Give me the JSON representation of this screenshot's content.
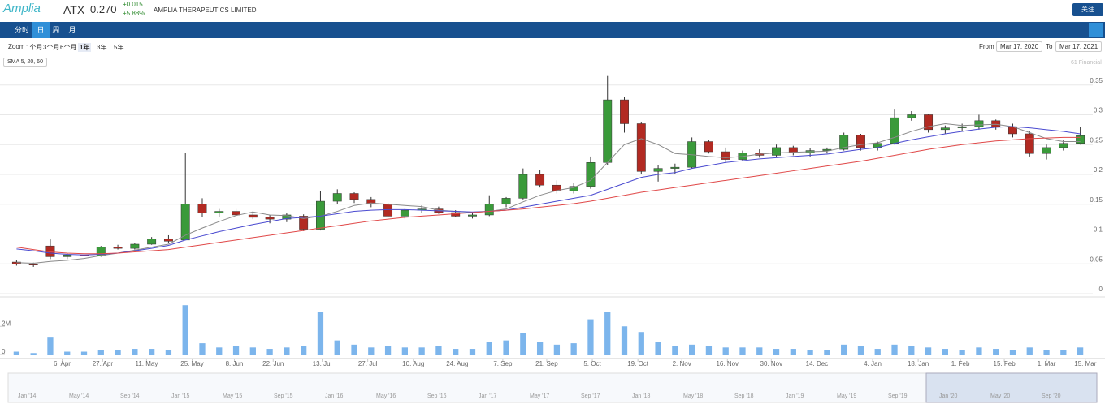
{
  "header": {
    "logo": "Amplia",
    "ticker": "ATX",
    "price": "0.270",
    "change": "+0.015",
    "change_pct": "+5.88%",
    "company": "AMPLIA THERAPEUTICS LIMITED",
    "follow": "关注"
  },
  "tabs": [
    "分时",
    "日",
    "周",
    "月"
  ],
  "zoom": {
    "label": "Zoom",
    "options": [
      "1个月",
      "3个月",
      "6个月",
      "1年",
      "3年",
      "5年"
    ],
    "from_label": "From",
    "from": "Mar 17, 2020",
    "to_label": "To",
    "to": "Mar 17, 2021"
  },
  "indicator": "SMA 5, 20, 60",
  "credit": "61 Financial",
  "navigator": [
    "Jan '14",
    "May '14",
    "Sep '14",
    "Jan '15",
    "May '15",
    "Sep '15",
    "Jan '16",
    "May '16",
    "Sep '16",
    "Jan '17",
    "May '17",
    "Sep '17",
    "Jan '18",
    "May '18",
    "Sep '18",
    "Jan '19",
    "May '19",
    "Sep '19",
    "Jan '20",
    "May '20",
    "Sep '20"
  ],
  "chart_data": [
    {
      "type": "candlestick",
      "up_color": "#3a9a3a",
      "down_color": "#b22a22",
      "categories": [
        null,
        null,
        null,
        null,
        null,
        null,
        null,
        null,
        null,
        null,
        null,
        null,
        null,
        null,
        null,
        null,
        null,
        null,
        null,
        null,
        null,
        null,
        null,
        null,
        null,
        null,
        null,
        null,
        null,
        null,
        null,
        null,
        null,
        null,
        null,
        null,
        null,
        null,
        null,
        null,
        null,
        null,
        null,
        null,
        null,
        null,
        null,
        null,
        null,
        null,
        null,
        null,
        null,
        null,
        null,
        null,
        null,
        null,
        null,
        null,
        null,
        null,
        null,
        null
      ],
      "open": [
        0.053,
        0.05,
        0.08,
        0.062,
        0.065,
        0.063,
        0.078,
        0.076,
        0.083,
        0.092,
        0.09,
        0.15,
        0.135,
        0.138,
        0.132,
        0.128,
        0.125,
        0.13,
        0.108,
        0.155,
        0.168,
        0.158,
        0.15,
        0.13,
        0.14,
        0.142,
        0.136,
        0.13,
        0.132,
        0.15,
        0.16,
        0.2,
        0.182,
        0.172,
        0.18,
        0.22,
        0.325,
        0.285,
        0.205,
        0.21,
        0.212,
        0.255,
        0.238,
        0.225,
        0.236,
        0.232,
        0.245,
        0.236,
        0.24,
        0.242,
        0.266,
        0.245,
        0.252,
        0.295,
        0.3,
        0.275,
        0.278,
        0.28,
        0.29,
        0.28,
        0.268,
        0.235,
        0.245,
        0.252
      ],
      "high": [
        0.056,
        0.052,
        0.091,
        0.068,
        0.068,
        0.08,
        0.082,
        0.085,
        0.095,
        0.098,
        0.236,
        0.16,
        0.142,
        0.142,
        0.138,
        0.132,
        0.135,
        0.133,
        0.172,
        0.175,
        0.17,
        0.162,
        0.152,
        0.142,
        0.148,
        0.146,
        0.14,
        0.135,
        0.165,
        0.162,
        0.21,
        0.208,
        0.19,
        0.185,
        0.23,
        0.365,
        0.33,
        0.288,
        0.215,
        0.218,
        0.262,
        0.258,
        0.245,
        0.24,
        0.242,
        0.25,
        0.248,
        0.244,
        0.245,
        0.27,
        0.268,
        0.255,
        0.31,
        0.306,
        0.302,
        0.282,
        0.285,
        0.3,
        0.292,
        0.285,
        0.272,
        0.25,
        0.258,
        0.28
      ],
      "low": [
        0.047,
        0.045,
        0.058,
        0.058,
        0.06,
        0.062,
        0.074,
        0.074,
        0.082,
        0.085,
        0.09,
        0.128,
        0.128,
        0.13,
        0.125,
        0.118,
        0.12,
        0.105,
        0.106,
        0.15,
        0.152,
        0.145,
        0.128,
        0.126,
        0.136,
        0.134,
        0.128,
        0.126,
        0.13,
        0.145,
        0.158,
        0.178,
        0.168,
        0.168,
        0.176,
        0.215,
        0.27,
        0.2,
        0.188,
        0.2,
        0.21,
        0.235,
        0.22,
        0.222,
        0.228,
        0.23,
        0.232,
        0.23,
        0.235,
        0.24,
        0.24,
        0.24,
        0.25,
        0.29,
        0.27,
        0.268,
        0.272,
        0.275,
        0.275,
        0.262,
        0.23,
        0.225,
        0.24,
        0.25
      ],
      "close": [
        0.05,
        0.048,
        0.062,
        0.065,
        0.063,
        0.078,
        0.076,
        0.083,
        0.092,
        0.088,
        0.15,
        0.135,
        0.138,
        0.132,
        0.128,
        0.125,
        0.132,
        0.108,
        0.155,
        0.168,
        0.158,
        0.15,
        0.13,
        0.14,
        0.142,
        0.136,
        0.13,
        0.132,
        0.15,
        0.16,
        0.2,
        0.182,
        0.172,
        0.18,
        0.22,
        0.325,
        0.285,
        0.205,
        0.21,
        0.212,
        0.255,
        0.238,
        0.225,
        0.236,
        0.232,
        0.245,
        0.236,
        0.24,
        0.242,
        0.266,
        0.245,
        0.252,
        0.295,
        0.3,
        0.275,
        0.278,
        0.28,
        0.29,
        0.28,
        0.268,
        0.235,
        0.245,
        0.252,
        0.265
      ],
      "series": [
        {
          "name": "SMA 5",
          "color": "#8a8a8a",
          "values": [
            0.052,
            0.051,
            0.054,
            0.056,
            0.059,
            0.064,
            0.068,
            0.073,
            0.078,
            0.083,
            0.098,
            0.11,
            0.121,
            0.131,
            0.137,
            0.132,
            0.131,
            0.126,
            0.13,
            0.138,
            0.148,
            0.152,
            0.15,
            0.148,
            0.146,
            0.14,
            0.138,
            0.136,
            0.138,
            0.142,
            0.154,
            0.165,
            0.173,
            0.178,
            0.19,
            0.22,
            0.25,
            0.26,
            0.25,
            0.235,
            0.233,
            0.23,
            0.228,
            0.23,
            0.234,
            0.236,
            0.237,
            0.238,
            0.239,
            0.245,
            0.25,
            0.253,
            0.262,
            0.272,
            0.28,
            0.285,
            0.282,
            0.283,
            0.284,
            0.28,
            0.27,
            0.26,
            0.255,
            0.255
          ]
        },
        {
          "name": "SMA 20",
          "color": "#4a4ad0",
          "values": [
            0.075,
            0.072,
            0.068,
            0.066,
            0.065,
            0.066,
            0.068,
            0.072,
            0.076,
            0.081,
            0.09,
            0.097,
            0.104,
            0.11,
            0.116,
            0.121,
            0.126,
            0.128,
            0.13,
            0.134,
            0.138,
            0.14,
            0.141,
            0.141,
            0.14,
            0.139,
            0.138,
            0.137,
            0.138,
            0.14,
            0.145,
            0.15,
            0.155,
            0.16,
            0.165,
            0.175,
            0.185,
            0.195,
            0.2,
            0.203,
            0.21,
            0.215,
            0.22,
            0.223,
            0.226,
            0.228,
            0.23,
            0.232,
            0.234,
            0.238,
            0.242,
            0.245,
            0.252,
            0.258,
            0.263,
            0.268,
            0.272,
            0.276,
            0.279,
            0.28,
            0.278,
            0.275,
            0.272,
            0.268
          ]
        },
        {
          "name": "SMA 60",
          "color": "#e04848",
          "values": [
            0.078,
            0.074,
            0.07,
            0.068,
            0.067,
            0.067,
            0.068,
            0.07,
            0.072,
            0.074,
            0.078,
            0.082,
            0.086,
            0.09,
            0.094,
            0.098,
            0.102,
            0.106,
            0.11,
            0.114,
            0.118,
            0.122,
            0.125,
            0.128,
            0.13,
            0.132,
            0.134,
            0.136,
            0.138,
            0.14,
            0.142,
            0.145,
            0.148,
            0.151,
            0.155,
            0.16,
            0.165,
            0.17,
            0.174,
            0.178,
            0.182,
            0.186,
            0.19,
            0.194,
            0.198,
            0.202,
            0.206,
            0.21,
            0.214,
            0.218,
            0.222,
            0.227,
            0.232,
            0.237,
            0.242,
            0.246,
            0.25,
            0.253,
            0.256,
            0.258,
            0.26,
            0.261,
            0.262,
            0.262
          ]
        }
      ],
      "xlim": [
        -0.5,
        63.5
      ],
      "ylim": [
        0,
        0.37
      ],
      "yticks": [
        0,
        0.05,
        0.1,
        0.15,
        0.2,
        0.25,
        0.3,
        0.35
      ],
      "grid": true
    },
    {
      "type": "bar",
      "color": "#7cb5ec",
      "values": [
        200000,
        100000,
        1200000,
        200000,
        200000,
        300000,
        300000,
        400000,
        400000,
        300000,
        3500000,
        800000,
        500000,
        600000,
        500000,
        400000,
        500000,
        600000,
        3000000,
        1000000,
        700000,
        500000,
        600000,
        500000,
        500000,
        600000,
        400000,
        400000,
        900000,
        1000000,
        1500000,
        900000,
        700000,
        800000,
        2500000,
        3000000,
        2000000,
        1600000,
        900000,
        600000,
        700000,
        600000,
        500000,
        500000,
        500000,
        400000,
        400000,
        300000,
        300000,
        700000,
        600000,
        400000,
        700000,
        600000,
        500000,
        400000,
        300000,
        500000,
        400000,
        300000,
        500000,
        300000,
        300000,
        500000
      ],
      "xlim": [
        -0.5,
        63.5
      ],
      "ylim": [
        0,
        3800000
      ],
      "yticks": [
        0,
        {
          "value": 2000000,
          "label": "2M"
        }
      ],
      "xticks": [
        {
          "value": 2.7,
          "label": "6. Apr"
        },
        {
          "value": 5.1,
          "label": "27. Apr"
        },
        {
          "value": 7.7,
          "label": "11. May"
        },
        {
          "value": 10.4,
          "label": "25. May"
        },
        {
          "value": 12.9,
          "label": "8. Jun"
        },
        {
          "value": 15.2,
          "label": "22. Jun"
        },
        {
          "value": 18.1,
          "label": "13. Jul"
        },
        {
          "value": 20.8,
          "label": "27. Jul"
        },
        {
          "value": 23.5,
          "label": "10. Aug"
        },
        {
          "value": 26.1,
          "label": "24. Aug"
        },
        {
          "value": 28.8,
          "label": "7. Sep"
        },
        {
          "value": 31.4,
          "label": "21. Sep"
        },
        {
          "value": 34.1,
          "label": "5. Oct"
        },
        {
          "value": 36.8,
          "label": "19. Oct"
        },
        {
          "value": 39.4,
          "label": "2. Nov"
        },
        {
          "value": 42.1,
          "label": "16. Nov"
        },
        {
          "value": 44.7,
          "label": "30. Nov"
        },
        {
          "value": 47.4,
          "label": "14. Dec"
        },
        {
          "value": 50.7,
          "label": "4. Jan"
        },
        {
          "value": 53.4,
          "label": "18. Jan"
        },
        {
          "value": 55.9,
          "label": "1. Feb"
        },
        {
          "value": 58.5,
          "label": "15. Feb"
        },
        {
          "value": 61.0,
          "label": "1. Mar"
        },
        {
          "value": 63.3,
          "label": "15. Mar"
        }
      ]
    }
  ]
}
